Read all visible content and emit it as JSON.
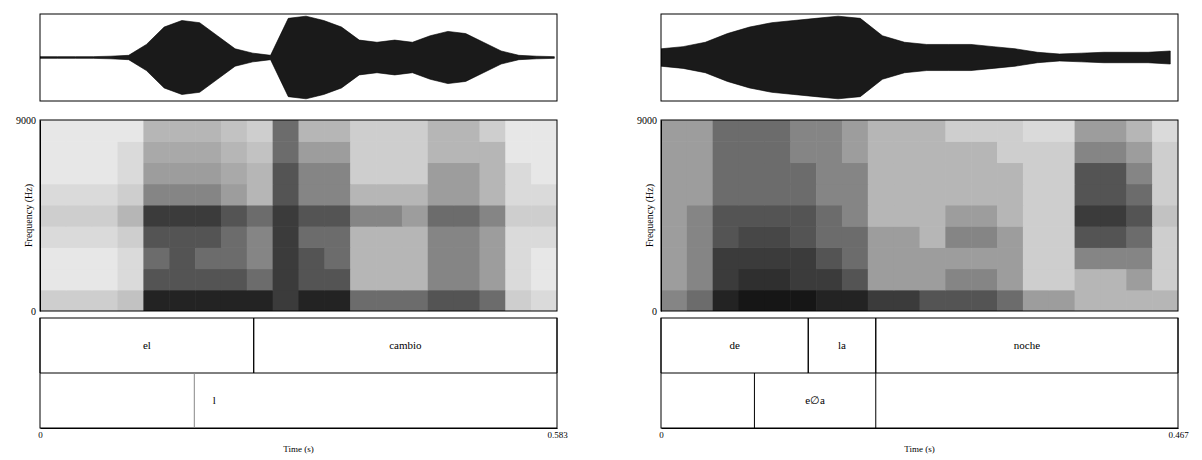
{
  "chart_data": [
    {
      "type": "spectrogram",
      "x_label": "Time (s)",
      "y_label": "Frequency (Hz)",
      "xlim": [
        0,
        0.583
      ],
      "xticks": [
        0,
        0.583
      ],
      "ylim": [
        0,
        9000
      ],
      "yticks": [
        0,
        9000
      ],
      "waveform": {
        "ylim": [
          -1,
          1
        ],
        "x": [
          0,
          0.02,
          0.04,
          0.06,
          0.08,
          0.1,
          0.12,
          0.14,
          0.16,
          0.18,
          0.2,
          0.22,
          0.24,
          0.26,
          0.28,
          0.3,
          0.32,
          0.34,
          0.36,
          0.38,
          0.4,
          0.42,
          0.44,
          0.46,
          0.48,
          0.5,
          0.52,
          0.54,
          0.56,
          0.58
        ],
        "values": [
          0.02,
          0.02,
          0.02,
          0.02,
          0.03,
          0.05,
          0.3,
          0.7,
          0.85,
          0.8,
          0.5,
          0.2,
          0.1,
          0.05,
          0.9,
          0.95,
          0.85,
          0.7,
          0.4,
          0.35,
          0.4,
          0.35,
          0.5,
          0.6,
          0.55,
          0.35,
          0.15,
          0.05,
          0.03,
          0.02
        ]
      },
      "spectrogram": {
        "zlim": [
          0,
          1
        ],
        "cells": [
          [
            0.2,
            0.2,
            0.2,
            0.25,
            0.9,
            0.9,
            0.9,
            0.9,
            0.9,
            0.8,
            0.9,
            0.9,
            0.6,
            0.6,
            0.6,
            0.7,
            0.7,
            0.6,
            0.2,
            0.15
          ],
          [
            0.1,
            0.1,
            0.1,
            0.15,
            0.7,
            0.7,
            0.7,
            0.7,
            0.6,
            0.8,
            0.7,
            0.7,
            0.3,
            0.3,
            0.3,
            0.5,
            0.5,
            0.4,
            0.15,
            0.1
          ],
          [
            0.1,
            0.1,
            0.1,
            0.15,
            0.6,
            0.7,
            0.6,
            0.6,
            0.5,
            0.8,
            0.7,
            0.6,
            0.3,
            0.3,
            0.3,
            0.5,
            0.5,
            0.4,
            0.15,
            0.1
          ],
          [
            0.15,
            0.15,
            0.15,
            0.2,
            0.7,
            0.7,
            0.7,
            0.6,
            0.5,
            0.8,
            0.6,
            0.6,
            0.3,
            0.3,
            0.3,
            0.5,
            0.5,
            0.4,
            0.15,
            0.15
          ],
          [
            0.2,
            0.2,
            0.2,
            0.3,
            0.8,
            0.8,
            0.8,
            0.7,
            0.6,
            0.8,
            0.7,
            0.7,
            0.5,
            0.5,
            0.4,
            0.6,
            0.6,
            0.5,
            0.2,
            0.2
          ],
          [
            0.15,
            0.15,
            0.15,
            0.2,
            0.5,
            0.5,
            0.5,
            0.4,
            0.3,
            0.7,
            0.5,
            0.5,
            0.3,
            0.3,
            0.3,
            0.4,
            0.4,
            0.3,
            0.15,
            0.15
          ],
          [
            0.1,
            0.1,
            0.1,
            0.15,
            0.4,
            0.4,
            0.4,
            0.35,
            0.3,
            0.7,
            0.5,
            0.5,
            0.2,
            0.2,
            0.2,
            0.4,
            0.4,
            0.3,
            0.15,
            0.1
          ],
          [
            0.1,
            0.1,
            0.1,
            0.15,
            0.35,
            0.35,
            0.35,
            0.3,
            0.25,
            0.6,
            0.4,
            0.4,
            0.2,
            0.2,
            0.2,
            0.3,
            0.3,
            0.3,
            0.1,
            0.1
          ],
          [
            0.1,
            0.1,
            0.1,
            0.1,
            0.3,
            0.3,
            0.3,
            0.25,
            0.2,
            0.6,
            0.3,
            0.3,
            0.2,
            0.2,
            0.2,
            0.3,
            0.3,
            0.2,
            0.1,
            0.1
          ]
        ]
      },
      "tiers": [
        {
          "intervals": [
            {
              "start": 0,
              "end": 0.241,
              "label": "el"
            },
            {
              "start": 0.241,
              "end": 0.583,
              "label": "cambio"
            }
          ]
        },
        {
          "points": [
            {
              "time": 0.174,
              "label": "l"
            }
          ]
        }
      ]
    },
    {
      "type": "spectrogram",
      "x_label": "Time (s)",
      "y_label": "Frequency (Hz)",
      "xlim": [
        0,
        0.467
      ],
      "xticks": [
        0,
        0.467
      ],
      "ylim": [
        0,
        9000
      ],
      "yticks": [
        0,
        9000
      ],
      "waveform": {
        "ylim": [
          -1,
          1
        ],
        "x": [
          0,
          0.02,
          0.04,
          0.06,
          0.08,
          0.1,
          0.12,
          0.14,
          0.16,
          0.18,
          0.2,
          0.22,
          0.24,
          0.26,
          0.28,
          0.3,
          0.32,
          0.34,
          0.36,
          0.38,
          0.4,
          0.42,
          0.44,
          0.46
        ],
        "values": [
          0.2,
          0.25,
          0.35,
          0.55,
          0.7,
          0.8,
          0.85,
          0.9,
          0.95,
          0.9,
          0.5,
          0.35,
          0.3,
          0.3,
          0.3,
          0.25,
          0.2,
          0.12,
          0.08,
          0.1,
          0.12,
          0.12,
          0.12,
          0.15
        ]
      },
      "spectrogram": {
        "zlim": [
          0,
          1
        ],
        "cells": [
          [
            0.5,
            0.6,
            0.9,
            0.95,
            0.95,
            0.95,
            0.9,
            0.9,
            0.8,
            0.8,
            0.7,
            0.7,
            0.7,
            0.6,
            0.4,
            0.4,
            0.3,
            0.3,
            0.3,
            0.3
          ],
          [
            0.4,
            0.5,
            0.8,
            0.85,
            0.85,
            0.8,
            0.8,
            0.7,
            0.4,
            0.4,
            0.4,
            0.5,
            0.5,
            0.4,
            0.2,
            0.2,
            0.3,
            0.3,
            0.4,
            0.2
          ],
          [
            0.4,
            0.5,
            0.8,
            0.8,
            0.8,
            0.8,
            0.7,
            0.6,
            0.4,
            0.4,
            0.4,
            0.4,
            0.4,
            0.4,
            0.2,
            0.2,
            0.5,
            0.5,
            0.5,
            0.2
          ],
          [
            0.4,
            0.5,
            0.7,
            0.75,
            0.75,
            0.7,
            0.6,
            0.6,
            0.4,
            0.4,
            0.3,
            0.5,
            0.5,
            0.4,
            0.2,
            0.2,
            0.7,
            0.7,
            0.6,
            0.2
          ],
          [
            0.4,
            0.5,
            0.7,
            0.7,
            0.7,
            0.7,
            0.6,
            0.5,
            0.3,
            0.3,
            0.3,
            0.4,
            0.4,
            0.3,
            0.2,
            0.2,
            0.8,
            0.8,
            0.7,
            0.25
          ],
          [
            0.4,
            0.4,
            0.6,
            0.6,
            0.6,
            0.6,
            0.5,
            0.5,
            0.3,
            0.3,
            0.3,
            0.3,
            0.3,
            0.3,
            0.2,
            0.2,
            0.7,
            0.7,
            0.6,
            0.2
          ],
          [
            0.4,
            0.4,
            0.6,
            0.6,
            0.6,
            0.6,
            0.5,
            0.5,
            0.3,
            0.3,
            0.3,
            0.3,
            0.3,
            0.3,
            0.2,
            0.2,
            0.7,
            0.7,
            0.5,
            0.2
          ],
          [
            0.4,
            0.4,
            0.6,
            0.6,
            0.6,
            0.5,
            0.5,
            0.4,
            0.3,
            0.3,
            0.3,
            0.3,
            0.3,
            0.2,
            0.2,
            0.2,
            0.5,
            0.5,
            0.4,
            0.2
          ],
          [
            0.4,
            0.4,
            0.6,
            0.6,
            0.6,
            0.5,
            0.5,
            0.4,
            0.3,
            0.3,
            0.3,
            0.2,
            0.2,
            0.2,
            0.15,
            0.15,
            0.4,
            0.4,
            0.3,
            0.15
          ]
        ]
      },
      "tiers": [
        {
          "intervals": [
            {
              "start": 0,
              "end": 0.133,
              "label": "de"
            },
            {
              "start": 0.133,
              "end": 0.194,
              "label": "la"
            },
            {
              "start": 0.194,
              "end": 0.467,
              "label": "noche"
            }
          ]
        },
        {
          "intervals": [
            {
              "start": 0.0844,
              "end": 0.194,
              "label": "e∅a"
            }
          ]
        }
      ]
    }
  ]
}
